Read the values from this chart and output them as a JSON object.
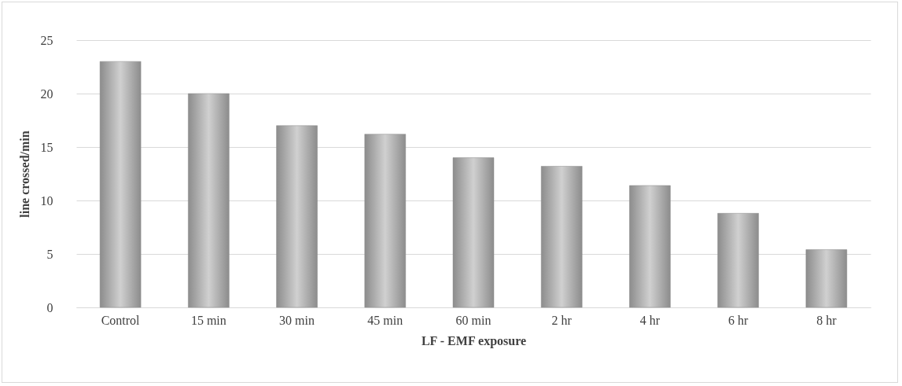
{
  "chart_data": {
    "type": "bar",
    "xlabel": "LF - EMF exposure",
    "ylabel": "line crossed/min",
    "categories": [
      "Control",
      "15 min",
      "30 min",
      "45 min",
      "60 min",
      "2 hr",
      "4 hr",
      "6 hr",
      "8 hr"
    ],
    "values": [
      23,
      20,
      17,
      16.2,
      14,
      13.2,
      11.4,
      8.8,
      5.4
    ],
    "color": "#8c8c8c",
    "ylim": [
      0,
      25
    ],
    "yticks": [
      0,
      5,
      10,
      15,
      20,
      25
    ],
    "grid": "y"
  }
}
